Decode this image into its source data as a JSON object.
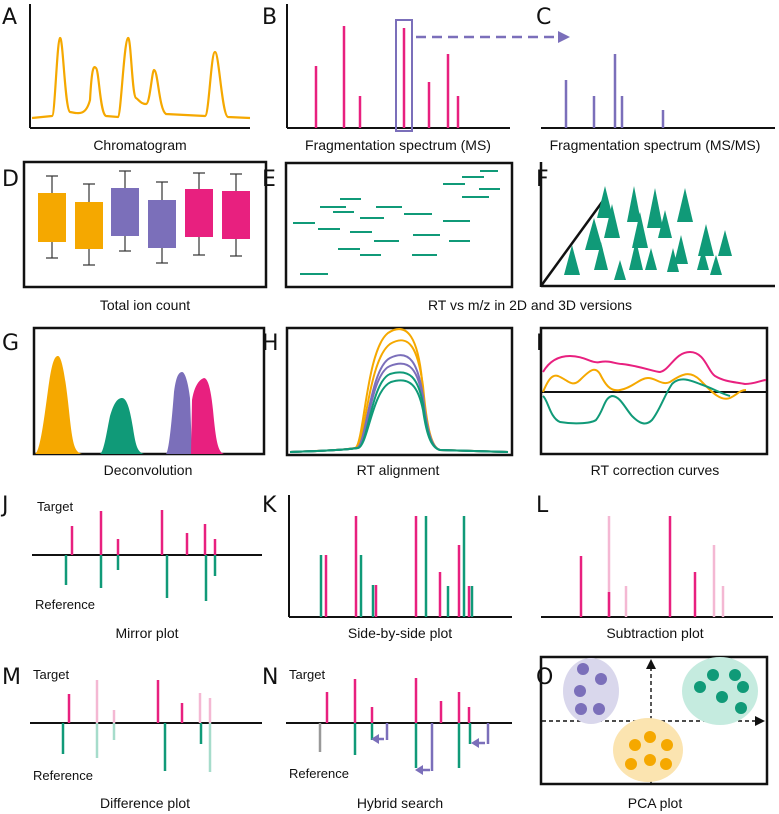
{
  "colors": {
    "orange": "#f5a800",
    "magenta": "#e8207f",
    "purple": "#7b6fba",
    "green": "#109a78",
    "pink_light": "#f4b8d3",
    "green_light": "#a6dccb",
    "gray": "#999999",
    "purple_ellipse": "#d9d7ec",
    "green_ellipse": "#c5ebdf",
    "orange_ellipse": "#fbe4b0"
  },
  "panels": {
    "A": {
      "letter": "A",
      "caption": "Chromatogram"
    },
    "B": {
      "letter": "B",
      "caption": "Fragmentation spectrum (MS)"
    },
    "C": {
      "letter": "C",
      "caption": "Fragmentation spectrum (MS/MS)"
    },
    "D": {
      "letter": "D",
      "caption": "Total ion count"
    },
    "E": {
      "letter": "E"
    },
    "F": {
      "letter": "F"
    },
    "EF": {
      "caption": "RT vs m/z in 2D and 3D versions"
    },
    "G": {
      "letter": "G",
      "caption": "Deconvolution"
    },
    "H": {
      "letter": "H",
      "caption": "RT alignment"
    },
    "I": {
      "letter": "I",
      "caption": "RT correction curves"
    },
    "J": {
      "letter": "J",
      "caption": "Mirror plot",
      "target_label": "Target",
      "reference_label": "Reference"
    },
    "K": {
      "letter": "K",
      "caption": "Side-by-side plot"
    },
    "L": {
      "letter": "L",
      "caption": "Subtraction plot"
    },
    "M": {
      "letter": "M",
      "caption": "Difference plot",
      "target_label": "Target",
      "reference_label": "Reference"
    },
    "N": {
      "letter": "N",
      "caption": "Hybrid search",
      "target_label": "Target",
      "reference_label": "Reference"
    },
    "O": {
      "letter": "O",
      "caption": "PCA plot"
    }
  }
}
